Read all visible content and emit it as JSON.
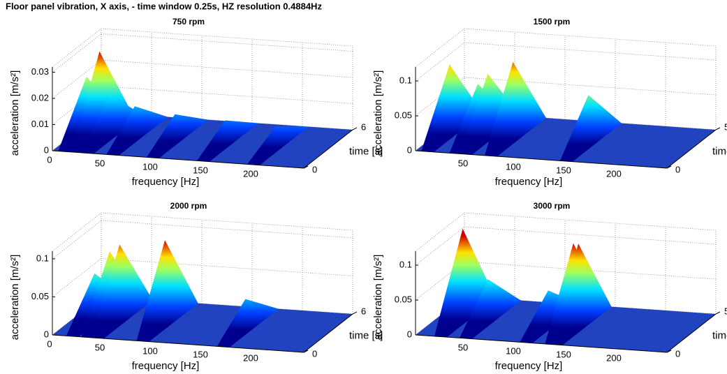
{
  "title": "Floor panel vibration, X axis, - time window 0.25s, HZ resolution 0.4884Hz",
  "chart_data": [
    {
      "type": "surface",
      "title": "750 rpm",
      "xlabel": "frequency [Hz]",
      "ylabel": "time [s]",
      "zlabel": "acceleration [m/s²]",
      "xlim": [
        0,
        250
      ],
      "ylim": [
        0,
        6
      ],
      "zlim": [
        0,
        0.032
      ],
      "xticks": [
        0,
        50,
        100,
        150,
        200
      ],
      "yticks": [
        0,
        6
      ],
      "zticks": [
        0,
        0.01,
        0.02,
        0.03
      ],
      "x": [
        12,
        25,
        35,
        60,
        100,
        150,
        200
      ],
      "values": [
        0.022,
        0.032,
        0.016,
        0.012,
        0.01,
        0.009,
        0.008
      ]
    },
    {
      "type": "surface",
      "title": "1500 rpm",
      "xlabel": "frequency [Hz]",
      "ylabel": "time [s]",
      "zlabel": "acceleration [m/s²]",
      "xlim": [
        0,
        250
      ],
      "ylim": [
        0,
        5
      ],
      "zlim": [
        0,
        0.12
      ],
      "xticks": [
        50,
        100,
        150,
        200
      ],
      "yticks": [
        0,
        5
      ],
      "zticks": [
        0,
        0.05,
        0.1
      ],
      "x": [
        12,
        40,
        50,
        75,
        150
      ],
      "values": [
        0.1,
        0.075,
        0.09,
        0.11,
        0.07
      ]
    },
    {
      "type": "surface",
      "title": "2000 rpm",
      "xlabel": "frequency [Hz]",
      "ylabel": "time [s]",
      "zlabel": "acceleration [m/s²]",
      "xlim": [
        0,
        250
      ],
      "ylim": [
        0,
        6
      ],
      "zlim": [
        0,
        0.11
      ],
      "xticks": [
        0,
        50,
        100,
        150,
        200
      ],
      "yticks": [
        0,
        6
      ],
      "zticks": [
        0,
        0.05,
        0.1
      ],
      "x": [
        20,
        35,
        45,
        90,
        170
      ],
      "values": [
        0.06,
        0.09,
        0.1,
        0.11,
        0.04
      ]
    },
    {
      "type": "surface",
      "title": "3000 rpm",
      "xlabel": "frequency [Hz]",
      "ylabel": "time [s]",
      "zlabel": "acceleration [m/s²]",
      "xlim": [
        0,
        250
      ],
      "ylim": [
        0,
        5
      ],
      "zlim": [
        0,
        0.12
      ],
      "xticks": [
        50,
        100,
        150,
        200
      ],
      "yticks": [
        0,
        5
      ],
      "zticks": [
        0,
        0.05,
        0.1
      ],
      "x": [
        25,
        50,
        110,
        135,
        140
      ],
      "values": [
        0.13,
        0.06,
        0.05,
        0.12,
        0.12
      ]
    }
  ]
}
